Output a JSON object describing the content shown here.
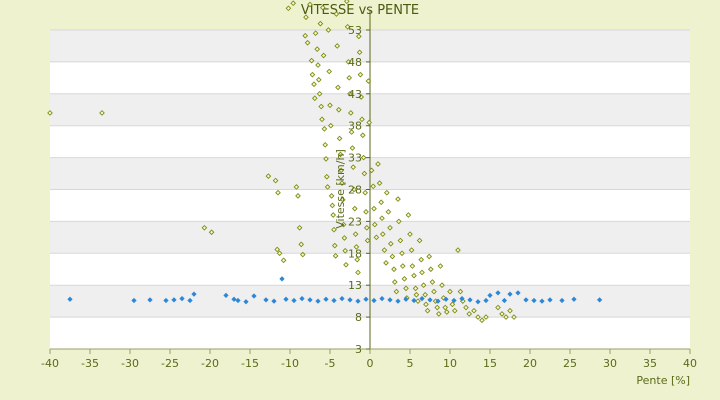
{
  "chart_data": {
    "type": "scatter",
    "title": "VITESSE vs PENTE",
    "xlabel": "Pente [%]",
    "ylabel": "Vitesse [km/h]",
    "xlim": [
      -40,
      40
    ],
    "ylim": [
      3,
      58
    ],
    "x_ticks": [
      -40,
      -35,
      -30,
      -25,
      -20,
      -15,
      -10,
      -5,
      0,
      5,
      10,
      15,
      20,
      25,
      30,
      35,
      40
    ],
    "x_tick_labels": [
      "-40",
      "-35",
      "-30",
      "-25",
      "-20",
      "-15",
      "-10",
      "-5",
      "0",
      "5",
      "10",
      "15",
      "20",
      "25",
      "30",
      "35",
      "40"
    ],
    "y_ticks": [
      3,
      8,
      13,
      18,
      23,
      28,
      33,
      38,
      43,
      48,
      53
    ],
    "y_tick_labels": [
      "3",
      "8",
      "13",
      "18",
      "23",
      "28",
      "33",
      "38",
      "43",
      "48",
      "53"
    ],
    "grid": true,
    "colors": {
      "background": "#eef2cf",
      "band_light": "#ffffff",
      "band_dark": "#efefef",
      "series_green": "#7d8c1a",
      "series_blue": "#2e86d4",
      "text": "#5a6a1a"
    },
    "series": [
      {
        "color": "#7d8c1a",
        "marker": "diamond-outline",
        "points": [
          [
            -40,
            40
          ],
          [
            -33.5,
            40
          ],
          [
            -20.7,
            22
          ],
          [
            -19.8,
            21.3
          ],
          [
            -12.7,
            30.1
          ],
          [
            -11.8,
            29.4
          ],
          [
            -11.5,
            27.5
          ],
          [
            -11.6,
            18.6
          ],
          [
            -11.3,
            18.0
          ],
          [
            -10.8,
            16.9
          ],
          [
            -10.2,
            56.4
          ],
          [
            -9.6,
            57.2
          ],
          [
            -9.2,
            28.4
          ],
          [
            -9.0,
            27.0
          ],
          [
            -8.8,
            22.0
          ],
          [
            -8.6,
            19.4
          ],
          [
            -8.4,
            17.8
          ],
          [
            -8.1,
            52.1
          ],
          [
            -8.0,
            55.0
          ],
          [
            -7.8,
            51.0
          ],
          [
            -7.5,
            57.0
          ],
          [
            -7.3,
            48.2
          ],
          [
            -7.2,
            46.0
          ],
          [
            -7.0,
            44.5
          ],
          [
            -6.9,
            42.3
          ],
          [
            -6.8,
            52.5
          ],
          [
            -6.6,
            50.0
          ],
          [
            -6.5,
            47.5
          ],
          [
            -6.4,
            45.2
          ],
          [
            -6.3,
            43.0
          ],
          [
            -6.2,
            54.0
          ],
          [
            -6.1,
            41.0
          ],
          [
            -6.0,
            39.0
          ],
          [
            -5.9,
            56.5
          ],
          [
            -5.8,
            49.0
          ],
          [
            -5.7,
            37.5
          ],
          [
            -5.6,
            35.0
          ],
          [
            -5.5,
            32.8
          ],
          [
            -5.4,
            30.0
          ],
          [
            -5.3,
            28.4
          ],
          [
            -5.2,
            53.0
          ],
          [
            -5.1,
            46.5
          ],
          [
            -5.0,
            41.2
          ],
          [
            -4.9,
            38.0
          ],
          [
            -4.8,
            27.0
          ],
          [
            -4.7,
            25.5
          ],
          [
            -4.6,
            24.0
          ],
          [
            -4.5,
            21.7
          ],
          [
            -4.4,
            19.2
          ],
          [
            -4.3,
            17.6
          ],
          [
            -4.2,
            55.5
          ],
          [
            -4.1,
            50.5
          ],
          [
            -4.0,
            44.0
          ],
          [
            -3.9,
            40.5
          ],
          [
            -3.8,
            36.0
          ],
          [
            -3.7,
            33.5
          ],
          [
            -3.6,
            31.0
          ],
          [
            -3.5,
            29.0
          ],
          [
            -3.4,
            26.4
          ],
          [
            -3.3,
            22.5
          ],
          [
            -3.2,
            20.4
          ],
          [
            -3.1,
            18.4
          ],
          [
            -3.0,
            16.2
          ],
          [
            -2.9,
            57.5
          ],
          [
            -2.8,
            53.5
          ],
          [
            -2.7,
            48.0
          ],
          [
            -2.6,
            45.5
          ],
          [
            -2.5,
            43.0
          ],
          [
            -2.4,
            40.0
          ],
          [
            -2.3,
            37.0
          ],
          [
            -2.2,
            34.5
          ],
          [
            -2.1,
            31.5
          ],
          [
            -2.0,
            28.0
          ],
          [
            -1.9,
            25.0
          ],
          [
            -1.8,
            21.0
          ],
          [
            -1.7,
            19.0
          ],
          [
            -1.6,
            17.0
          ],
          [
            -1.5,
            15.0
          ],
          [
            -1.4,
            52.0
          ],
          [
            -1.3,
            49.5
          ],
          [
            -1.2,
            46.0
          ],
          [
            -1.1,
            42.5
          ],
          [
            -1.0,
            39.0
          ],
          [
            -0.9,
            36.5
          ],
          [
            -0.8,
            33.0
          ],
          [
            -0.7,
            30.5
          ],
          [
            -0.6,
            27.5
          ],
          [
            -0.5,
            24.5
          ],
          [
            -0.4,
            22.0
          ],
          [
            -0.3,
            20.0
          ],
          [
            -0.2,
            45.0
          ],
          [
            -0.1,
            38.5
          ],
          [
            0.2,
            31.0
          ],
          [
            0.4,
            28.5
          ],
          [
            0.5,
            25.0
          ],
          [
            0.6,
            22.5
          ],
          [
            0.8,
            20.5
          ],
          [
            1.0,
            32.0
          ],
          [
            1.2,
            29.0
          ],
          [
            1.4,
            26.0
          ],
          [
            1.5,
            23.5
          ],
          [
            1.6,
            21.0
          ],
          [
            1.8,
            18.5
          ],
          [
            2.0,
            16.5
          ],
          [
            2.1,
            27.5
          ],
          [
            2.3,
            24.5
          ],
          [
            2.5,
            22.0
          ],
          [
            2.6,
            19.5
          ],
          [
            2.8,
            17.5
          ],
          [
            3.0,
            15.5
          ],
          [
            3.1,
            13.5
          ],
          [
            3.3,
            12.0
          ],
          [
            3.5,
            26.5
          ],
          [
            3.6,
            23.0
          ],
          [
            3.8,
            20.0
          ],
          [
            4.0,
            18.0
          ],
          [
            4.1,
            16.0
          ],
          [
            4.3,
            14.0
          ],
          [
            4.5,
            12.5
          ],
          [
            4.6,
            11.0
          ],
          [
            4.8,
            24.0
          ],
          [
            5.0,
            21.0
          ],
          [
            5.2,
            18.5
          ],
          [
            5.3,
            16.0
          ],
          [
            5.5,
            14.5
          ],
          [
            5.7,
            12.5
          ],
          [
            5.8,
            11.5
          ],
          [
            6.0,
            10.5
          ],
          [
            6.2,
            20.0
          ],
          [
            6.4,
            17.0
          ],
          [
            6.5,
            15.0
          ],
          [
            6.7,
            13.0
          ],
          [
            6.9,
            11.5
          ],
          [
            7.0,
            10.0
          ],
          [
            7.2,
            9.0
          ],
          [
            7.4,
            17.5
          ],
          [
            7.6,
            15.5
          ],
          [
            7.8,
            13.5
          ],
          [
            8.0,
            12.0
          ],
          [
            8.2,
            10.5
          ],
          [
            8.4,
            9.5
          ],
          [
            8.6,
            8.5
          ],
          [
            8.8,
            16.0
          ],
          [
            9.0,
            13.0
          ],
          [
            9.2,
            11.0
          ],
          [
            9.4,
            9.5
          ],
          [
            9.6,
            8.8
          ],
          [
            10.0,
            12.0
          ],
          [
            10.3,
            10.0
          ],
          [
            10.6,
            9.0
          ],
          [
            11.0,
            18.5
          ],
          [
            11.3,
            12.0
          ],
          [
            11.6,
            10.5
          ],
          [
            12.0,
            9.5
          ],
          [
            12.4,
            8.5
          ],
          [
            13.0,
            9.0
          ],
          [
            13.5,
            8.0
          ],
          [
            14.0,
            7.5
          ],
          [
            14.5,
            8.0
          ],
          [
            16.0,
            9.5
          ],
          [
            16.5,
            8.5
          ],
          [
            17.0,
            8.0
          ],
          [
            17.5,
            9.0
          ],
          [
            18.0,
            8.0
          ]
        ]
      },
      {
        "color": "#2e86d4",
        "marker": "diamond-filled",
        "points": [
          [
            -37.5,
            10.8
          ],
          [
            -29.5,
            10.6
          ],
          [
            -27.5,
            10.7
          ],
          [
            -25.5,
            10.6
          ],
          [
            -24.5,
            10.7
          ],
          [
            -23.5,
            10.9
          ],
          [
            -22.5,
            10.6
          ],
          [
            -22.0,
            11.6
          ],
          [
            -18.0,
            11.4
          ],
          [
            -17.0,
            10.8
          ],
          [
            -16.5,
            10.6
          ],
          [
            -15.5,
            10.4
          ],
          [
            -14.5,
            11.3
          ],
          [
            -13.0,
            10.7
          ],
          [
            -12.0,
            10.5
          ],
          [
            -11.0,
            14.0
          ],
          [
            -10.5,
            10.8
          ],
          [
            -9.5,
            10.6
          ],
          [
            -8.5,
            10.9
          ],
          [
            -7.5,
            10.7
          ],
          [
            -6.5,
            10.5
          ],
          [
            -5.5,
            10.8
          ],
          [
            -4.5,
            10.6
          ],
          [
            -3.5,
            10.9
          ],
          [
            -2.5,
            10.7
          ],
          [
            -1.5,
            10.5
          ],
          [
            -0.5,
            10.8
          ],
          [
            0.5,
            10.6
          ],
          [
            1.5,
            10.9
          ],
          [
            2.5,
            10.7
          ],
          [
            3.5,
            10.5
          ],
          [
            4.5,
            10.8
          ],
          [
            5.5,
            10.6
          ],
          [
            6.5,
            10.9
          ],
          [
            7.5,
            10.7
          ],
          [
            8.5,
            10.5
          ],
          [
            9.5,
            10.8
          ],
          [
            10.5,
            10.6
          ],
          [
            11.5,
            10.9
          ],
          [
            12.5,
            10.7
          ],
          [
            13.5,
            10.4
          ],
          [
            14.5,
            10.6
          ],
          [
            15.0,
            11.4
          ],
          [
            16.0,
            11.8
          ],
          [
            16.8,
            10.6
          ],
          [
            17.5,
            11.6
          ],
          [
            18.5,
            11.8
          ],
          [
            19.5,
            10.7
          ],
          [
            20.5,
            10.6
          ],
          [
            21.5,
            10.5
          ],
          [
            22.5,
            10.7
          ],
          [
            24.0,
            10.6
          ],
          [
            25.5,
            10.8
          ],
          [
            28.7,
            10.7
          ]
        ]
      }
    ]
  }
}
